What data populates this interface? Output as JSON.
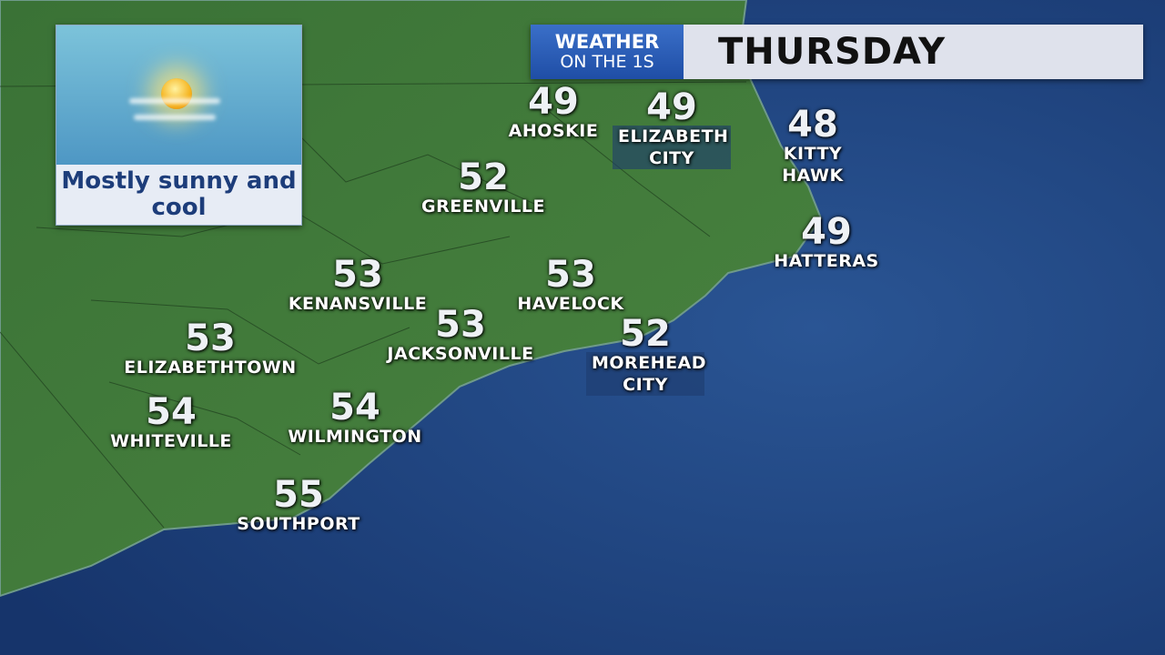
{
  "header": {
    "brand_line1": "WEATHER",
    "brand_line2": "ON THE 1S",
    "day": "THURSDAY"
  },
  "forecast": {
    "icon": "sun-icon",
    "caption": "Mostly sunny and cool"
  },
  "colors": {
    "ocean": "#1d3f7c",
    "land": "#3f7a3a",
    "brand": "#2a5bb5"
  },
  "cities": [
    {
      "name": "AHOSKIE",
      "temp": "49"
    },
    {
      "name": "ELIZABETH CITY",
      "temp": "49"
    },
    {
      "name": "KITTY HAWK",
      "temp": "48"
    },
    {
      "name": "GREENVILLE",
      "temp": "52"
    },
    {
      "name": "HATTERAS",
      "temp": "49"
    },
    {
      "name": "KENANSVILLE",
      "temp": "53"
    },
    {
      "name": "HAVELOCK",
      "temp": "53"
    },
    {
      "name": "JACKSONVILLE",
      "temp": "53"
    },
    {
      "name": "ELIZABETHTOWN",
      "temp": "53"
    },
    {
      "name": "MOREHEAD CITY",
      "temp": "52"
    },
    {
      "name": "WHITEVILLE",
      "temp": "54"
    },
    {
      "name": "WILMINGTON",
      "temp": "54"
    },
    {
      "name": "SOUTHPORT",
      "temp": "55"
    }
  ]
}
